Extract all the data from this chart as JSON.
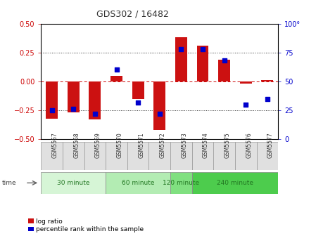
{
  "title": "GDS302 / 16482",
  "samples": [
    "GSM5567",
    "GSM5568",
    "GSM5569",
    "GSM5570",
    "GSM5571",
    "GSM5572",
    "GSM5573",
    "GSM5574",
    "GSM5575",
    "GSM5576",
    "GSM5577"
  ],
  "log_ratio": [
    -0.32,
    -0.27,
    -0.33,
    0.05,
    -0.15,
    -0.42,
    0.38,
    0.31,
    0.19,
    -0.02,
    0.01
  ],
  "percentile": [
    25,
    26,
    22,
    60,
    32,
    22,
    78,
    78,
    68,
    30,
    35
  ],
  "groups": [
    {
      "label": "30 minute",
      "start": 0,
      "end": 3,
      "color": "#d6f5d6"
    },
    {
      "label": "60 minute",
      "start": 3,
      "end": 6,
      "color": "#b3ecb3"
    },
    {
      "label": "120 minute",
      "start": 6,
      "end": 7,
      "color": "#80e080"
    },
    {
      "label": "240 minute",
      "start": 7,
      "end": 11,
      "color": "#4dcc4d"
    }
  ],
  "bar_color": "#cc1111",
  "dot_color": "#0000cc",
  "ylim": [
    -0.5,
    0.5
  ],
  "ylim_right": [
    0,
    100
  ],
  "yticks_left": [
    -0.5,
    -0.25,
    0.0,
    0.25,
    0.5
  ],
  "yticks_right": [
    0,
    25,
    50,
    75,
    100
  ],
  "bar_width": 0.55,
  "background_color": "#ffffff",
  "title_fontsize": 9,
  "tick_fontsize": 7,
  "label_fontsize": 7
}
